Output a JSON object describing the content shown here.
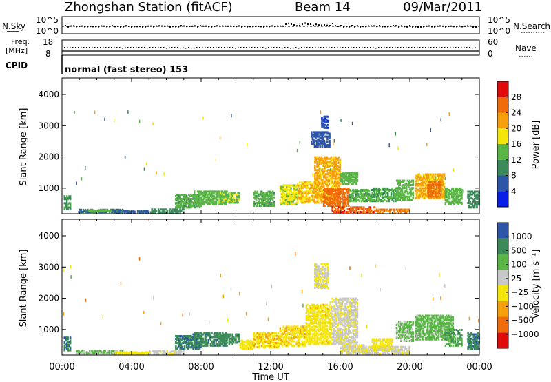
{
  "header": {
    "station": "Zhongshan Station (fitACF)",
    "beam": "Beam 14",
    "date": "09/Mar/2011"
  },
  "status_panels": {
    "nsky_label": "N.Sky",
    "nsky_ticks": [
      "10^5",
      "10^0"
    ],
    "nsearch_label": "N.Search",
    "nsearch_ticks": [
      "10^5",
      "10^0"
    ],
    "freq_label_1": "Freq.",
    "freq_label_2": "[MHz]",
    "freq_ticks": [
      "18",
      "8"
    ],
    "nave_label": "Nave",
    "nave_ticks": [
      "60",
      "0"
    ],
    "cpid_label": "CPID",
    "cpid_value": "normal (fast stereo) 153"
  },
  "colors": {
    "power_scale": [
      "#0a1fe6",
      "#2e56a8",
      "#3c8a5a",
      "#59b545",
      "#f5e60a",
      "#f5a00a",
      "#f06c0a",
      "#e00a0a"
    ],
    "velocity_scale": [
      "#e00a0a",
      "#f06c0a",
      "#f5a00a",
      "#f5e60a",
      "#c8c8c8",
      "#59b545",
      "#3c8a5a",
      "#2e56a8"
    ]
  },
  "chart_data": [
    {
      "type": "heatmap",
      "name": "power",
      "ylabel": "Slant Range [km]",
      "yticks": [
        "4000",
        "3000",
        "2000",
        "1000"
      ],
      "ylim": [
        180,
        4530
      ],
      "colorbar_label": "Power [dB]",
      "colorbar_ticks": [
        "28",
        "24",
        "20",
        "16",
        "12",
        "8",
        "4"
      ],
      "clim": [
        0,
        32
      ],
      "x_range_hours": [
        0,
        24
      ],
      "patches": [
        {
          "t0": 0.1,
          "t1": 0.5,
          "r0": 300,
          "r1": 750,
          "v": 11
        },
        {
          "t0": 0.8,
          "t1": 3.5,
          "r0": 200,
          "r1": 310,
          "v": 8
        },
        {
          "t0": 1.5,
          "t1": 2.8,
          "r0": 220,
          "r1": 280,
          "v": 14
        },
        {
          "t0": 3.0,
          "t1": 5.0,
          "r0": 190,
          "r1": 260,
          "v": 7
        },
        {
          "t0": 5.0,
          "t1": 7.0,
          "r0": 190,
          "r1": 330,
          "v": 10
        },
        {
          "t0": 6.5,
          "t1": 8.0,
          "r0": 350,
          "r1": 800,
          "v": 13
        },
        {
          "t0": 7.5,
          "t1": 9.5,
          "r0": 450,
          "r1": 900,
          "v": 14
        },
        {
          "t0": 9.0,
          "t1": 10.2,
          "r0": 500,
          "r1": 850,
          "v": 15
        },
        {
          "t0": 11.0,
          "t1": 12.2,
          "r0": 400,
          "r1": 900,
          "v": 13
        },
        {
          "t0": 12.5,
          "t1": 13.5,
          "r0": 450,
          "r1": 1100,
          "v": 17
        },
        {
          "t0": 13.5,
          "t1": 14.5,
          "r0": 500,
          "r1": 1200,
          "v": 20
        },
        {
          "t0": 14.5,
          "t1": 16.0,
          "r0": 500,
          "r1": 2000,
          "v": 21
        },
        {
          "t0": 15.0,
          "t1": 16.5,
          "r0": 400,
          "r1": 1000,
          "v": 26
        },
        {
          "t0": 16.0,
          "t1": 17.0,
          "r0": 1100,
          "r1": 1500,
          "v": 14
        },
        {
          "t0": 15.5,
          "t1": 18.0,
          "r0": 200,
          "r1": 400,
          "v": 27
        },
        {
          "t0": 18.0,
          "t1": 20.0,
          "r0": 180,
          "r1": 330,
          "v": 24
        },
        {
          "t0": 16.5,
          "t1": 17.8,
          "r0": 550,
          "r1": 950,
          "v": 13
        },
        {
          "t0": 17.8,
          "t1": 19.2,
          "r0": 550,
          "r1": 1000,
          "v": 12
        },
        {
          "t0": 19.2,
          "t1": 20.2,
          "r0": 600,
          "r1": 1250,
          "v": 14
        },
        {
          "t0": 20.3,
          "t1": 22.0,
          "r0": 650,
          "r1": 1450,
          "v": 21
        },
        {
          "t0": 21.0,
          "t1": 21.8,
          "r0": 700,
          "r1": 1200,
          "v": 26
        },
        {
          "t0": 22.0,
          "t1": 23.0,
          "r0": 450,
          "r1": 1000,
          "v": 14
        },
        {
          "t0": 23.3,
          "t1": 24.0,
          "r0": 350,
          "r1": 900,
          "v": 10
        },
        {
          "t0": 14.3,
          "t1": 15.4,
          "r0": 2300,
          "r1": 2800,
          "v": 6
        },
        {
          "t0": 14.9,
          "t1": 15.3,
          "r0": 2900,
          "r1": 3300,
          "v": 5
        }
      ]
    },
    {
      "type": "heatmap",
      "name": "velocity",
      "ylabel": "Slant Range [km]",
      "yticks": [
        "4000",
        "3000",
        "2000",
        "1000"
      ],
      "ylim": [
        180,
        4530
      ],
      "colorbar_label": "Velocity [m s⁻¹]",
      "colorbar_ticks": [
        "1000",
        "500",
        "100",
        "25",
        "−25",
        "−100",
        "−500",
        "−1000"
      ],
      "clim": [
        -1000,
        1000
      ],
      "x_range_hours": [
        0,
        24
      ],
      "xticks": [
        "00:00",
        "04:00",
        "08:00",
        "12:00",
        "16:00",
        "20:00",
        "00:00"
      ],
      "xlabel": "Time UT",
      "patches": [
        {
          "t0": 0.1,
          "t1": 0.5,
          "r0": 300,
          "r1": 750,
          "v": 700
        },
        {
          "t0": 0.8,
          "t1": 3.5,
          "r0": 200,
          "r1": 310,
          "v": 300
        },
        {
          "t0": 3.0,
          "t1": 5.0,
          "r0": 190,
          "r1": 260,
          "v": -120
        },
        {
          "t0": 5.0,
          "t1": 7.0,
          "r0": 190,
          "r1": 330,
          "v": 80
        },
        {
          "t0": 6.5,
          "t1": 8.0,
          "r0": 350,
          "r1": 800,
          "v": 700
        },
        {
          "t0": 7.5,
          "t1": 9.5,
          "r0": 450,
          "r1": 900,
          "v": 650
        },
        {
          "t0": 9.0,
          "t1": 10.2,
          "r0": 500,
          "r1": 850,
          "v": 600
        },
        {
          "t0": 10.2,
          "t1": 11.0,
          "r0": 350,
          "r1": 650,
          "v": -150
        },
        {
          "t0": 11.0,
          "t1": 12.5,
          "r0": 400,
          "r1": 900,
          "v": -200
        },
        {
          "t0": 12.5,
          "t1": 14.0,
          "r0": 450,
          "r1": 1100,
          "v": -180
        },
        {
          "t0": 14.0,
          "t1": 15.5,
          "r0": 500,
          "r1": 1800,
          "v": -140
        },
        {
          "t0": 15.5,
          "t1": 17.0,
          "r0": 500,
          "r1": 2000,
          "v": 60
        },
        {
          "t0": 16.0,
          "t1": 17.5,
          "r0": 200,
          "r1": 500,
          "v": 10
        },
        {
          "t0": 17.5,
          "t1": 20.0,
          "r0": 180,
          "r1": 450,
          "v": 60
        },
        {
          "t0": 17.8,
          "t1": 19.0,
          "r0": 300,
          "r1": 700,
          "v": -80
        },
        {
          "t0": 19.2,
          "t1": 20.2,
          "r0": 600,
          "r1": 1250,
          "v": 300
        },
        {
          "t0": 20.3,
          "t1": 22.5,
          "r0": 650,
          "r1": 1450,
          "v": 350
        },
        {
          "t0": 22.0,
          "t1": 23.0,
          "r0": 450,
          "r1": 1000,
          "v": 500
        },
        {
          "t0": 23.3,
          "t1": 24.0,
          "r0": 350,
          "r1": 900,
          "v": 700
        },
        {
          "t0": 14.5,
          "t1": 15.3,
          "r0": 2300,
          "r1": 3100,
          "v": 10
        }
      ]
    }
  ]
}
